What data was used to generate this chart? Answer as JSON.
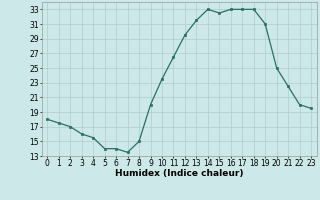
{
  "x": [
    0,
    1,
    2,
    3,
    4,
    5,
    6,
    7,
    8,
    9,
    10,
    11,
    12,
    13,
    14,
    15,
    16,
    17,
    18,
    19,
    20,
    21,
    22,
    23
  ],
  "y": [
    18,
    17.5,
    17,
    16,
    15.5,
    14,
    14,
    13.5,
    15,
    20,
    23.5,
    26.5,
    29.5,
    31.5,
    33,
    32.5,
    33,
    33,
    33,
    31,
    25,
    22.5,
    20,
    19.5
  ],
  "line_color": "#2a7060",
  "marker": "s",
  "marker_size": 1.8,
  "bg_color": "#cde8e8",
  "grid_color": "#b0cccc",
  "xlabel": "Humidex (Indice chaleur)",
  "ylim": [
    13,
    34
  ],
  "yticks": [
    13,
    15,
    17,
    19,
    21,
    23,
    25,
    27,
    29,
    31,
    33
  ],
  "xlim": [
    -0.5,
    23.5
  ],
  "xticks": [
    0,
    1,
    2,
    3,
    4,
    5,
    6,
    7,
    8,
    9,
    10,
    11,
    12,
    13,
    14,
    15,
    16,
    17,
    18,
    19,
    20,
    21,
    22,
    23
  ],
  "xlabel_fontsize": 6.5,
  "tick_fontsize": 5.5,
  "line_width": 0.9
}
